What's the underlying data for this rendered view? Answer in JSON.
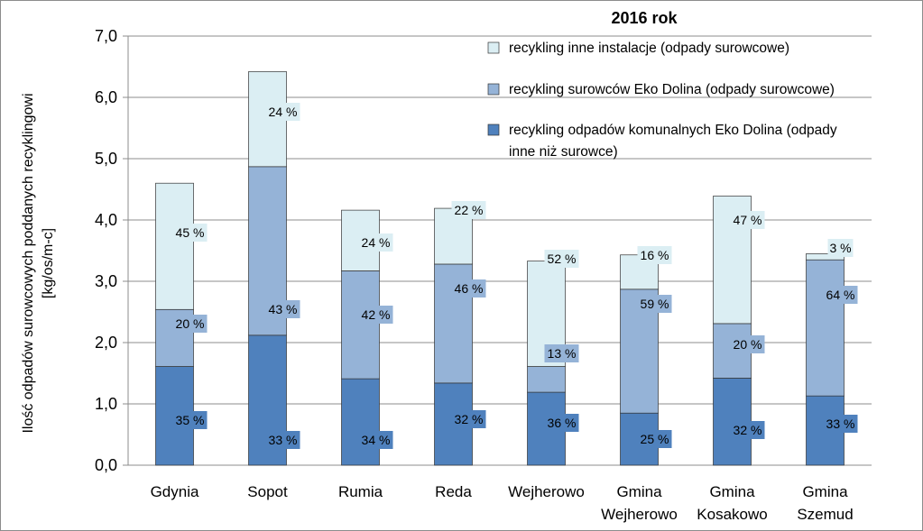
{
  "chart_data": {
    "type": "bar",
    "stacked": true,
    "title": "2016 rok",
    "ylabel_line1": "Ilość odpadów surowcowych poddanych recyklingowi",
    "ylabel_line2": "[kg/os/m-c]",
    "xlabel": "",
    "ylim": [
      0,
      7
    ],
    "yticks": [
      "0,0",
      "1,0",
      "2,0",
      "3,0",
      "4,0",
      "5,0",
      "6,0",
      "7,0"
    ],
    "categories": [
      [
        "Gdynia"
      ],
      [
        "Sopot"
      ],
      [
        "Rumia"
      ],
      [
        "Reda"
      ],
      [
        "Wejherowo"
      ],
      [
        "Gmina",
        "Wejherowo"
      ],
      [
        "Gmina",
        "Kosakowo"
      ],
      [
        "Gmina",
        "Szemud"
      ]
    ],
    "series": [
      {
        "name": "recykling odpadów komunalnych Eko Dolina (odpady inne niż surowce)",
        "legend_lines": [
          "recykling odpadów komunalnych Eko Dolina (odpady",
          "inne niż surowce)"
        ],
        "color": "#4f81bd",
        "values": [
          1.61,
          2.12,
          1.41,
          1.34,
          1.19,
          0.85,
          1.42,
          1.13
        ],
        "labels": [
          "35 %",
          "33 %",
          "34 %",
          "32 %",
          "36 %",
          "25 %",
          "32 %",
          "33 %"
        ]
      },
      {
        "name": "recykling surowców Eko Dolina (odpady surowcowe)",
        "legend_lines": [
          "recykling surowców Eko Dolina (odpady surowcowe)"
        ],
        "color": "#95b3d7",
        "values": [
          0.93,
          2.75,
          1.76,
          1.94,
          0.42,
          2.02,
          0.89,
          2.22
        ],
        "labels": [
          "20 %",
          "43 %",
          "42 %",
          "46 %",
          "13 %",
          "59 %",
          "20 %",
          "64 %"
        ]
      },
      {
        "name": "recykling inne instalacje (odpady surowcowe)",
        "legend_lines": [
          "recykling inne instalacje (odpady surowcowe)"
        ],
        "color": "#dbeef3",
        "values": [
          2.06,
          1.55,
          0.99,
          0.91,
          1.72,
          0.56,
          2.08,
          0.1
        ],
        "labels": [
          "45 %",
          "24 %",
          "24 %",
          "22 %",
          "52 %",
          "16 %",
          "47 %",
          "3 %"
        ]
      }
    ]
  }
}
